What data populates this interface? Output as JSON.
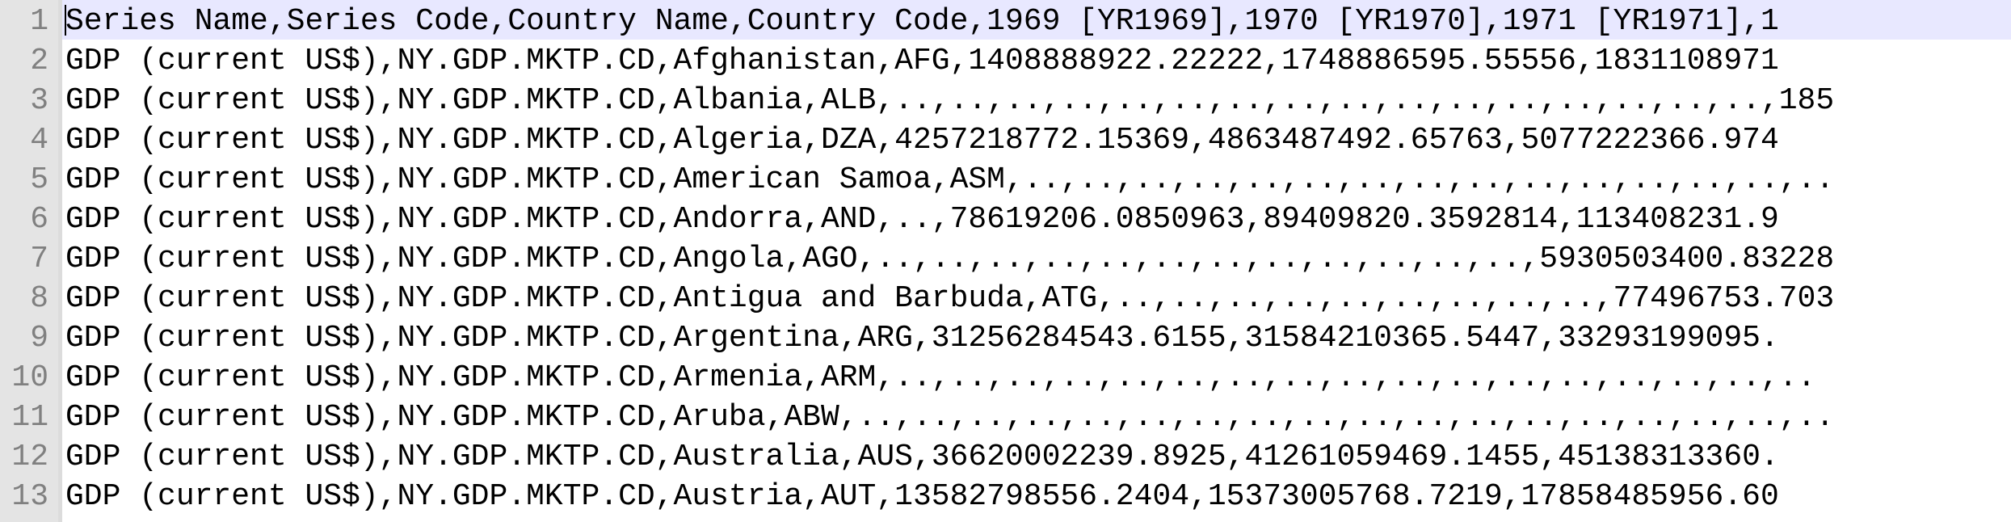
{
  "editor": {
    "lines": [
      {
        "number": "1",
        "text": "Series Name,Series Code,Country Name,Country Code,1969 [YR1969],1970 [YR1970],1971 [YR1971],1"
      },
      {
        "number": "2",
        "text": "GDP (current US$),NY.GDP.MKTP.CD,Afghanistan,AFG,1408888922.22222,1748886595.55556,1831108971"
      },
      {
        "number": "3",
        "text": "GDP (current US$),NY.GDP.MKTP.CD,Albania,ALB,..,..,..,..,..,..,..,..,..,..,..,..,..,..,..,..,185"
      },
      {
        "number": "4",
        "text": "GDP (current US$),NY.GDP.MKTP.CD,Algeria,DZA,4257218772.15369,4863487492.65763,5077222366.974"
      },
      {
        "number": "5",
        "text": "GDP (current US$),NY.GDP.MKTP.CD,American Samoa,ASM,..,..,..,..,..,..,..,..,..,..,..,..,..,..,.."
      },
      {
        "number": "6",
        "text": "GDP (current US$),NY.GDP.MKTP.CD,Andorra,AND,..,78619206.0850963,89409820.3592814,113408231.9"
      },
      {
        "number": "7",
        "text": "GDP (current US$),NY.GDP.MKTP.CD,Angola,AGO,..,..,..,..,..,..,..,..,..,..,..,..,5930503400.83228"
      },
      {
        "number": "8",
        "text": "GDP (current US$),NY.GDP.MKTP.CD,Antigua and Barbuda,ATG,..,..,..,..,..,..,..,..,..,77496753.703"
      },
      {
        "number": "9",
        "text": "GDP (current US$),NY.GDP.MKTP.CD,Argentina,ARG,31256284543.6155,31584210365.5447,33293199095."
      },
      {
        "number": "10",
        "text": "GDP (current US$),NY.GDP.MKTP.CD,Armenia,ARM,..,..,..,..,..,..,..,..,..,..,..,..,..,..,..,..,.."
      },
      {
        "number": "11",
        "text": "GDP (current US$),NY.GDP.MKTP.CD,Aruba,ABW,..,..,..,..,..,..,..,..,..,..,..,..,..,..,..,..,..,.."
      },
      {
        "number": "12",
        "text": "GDP (current US$),NY.GDP.MKTP.CD,Australia,AUS,36620002239.8925,41261059469.1455,45138313360."
      },
      {
        "number": "13",
        "text": "GDP (current US$),NY.GDP.MKTP.CD,Austria,AUT,13582798556.2404,15373005768.7219,17858485956.60"
      }
    ]
  }
}
